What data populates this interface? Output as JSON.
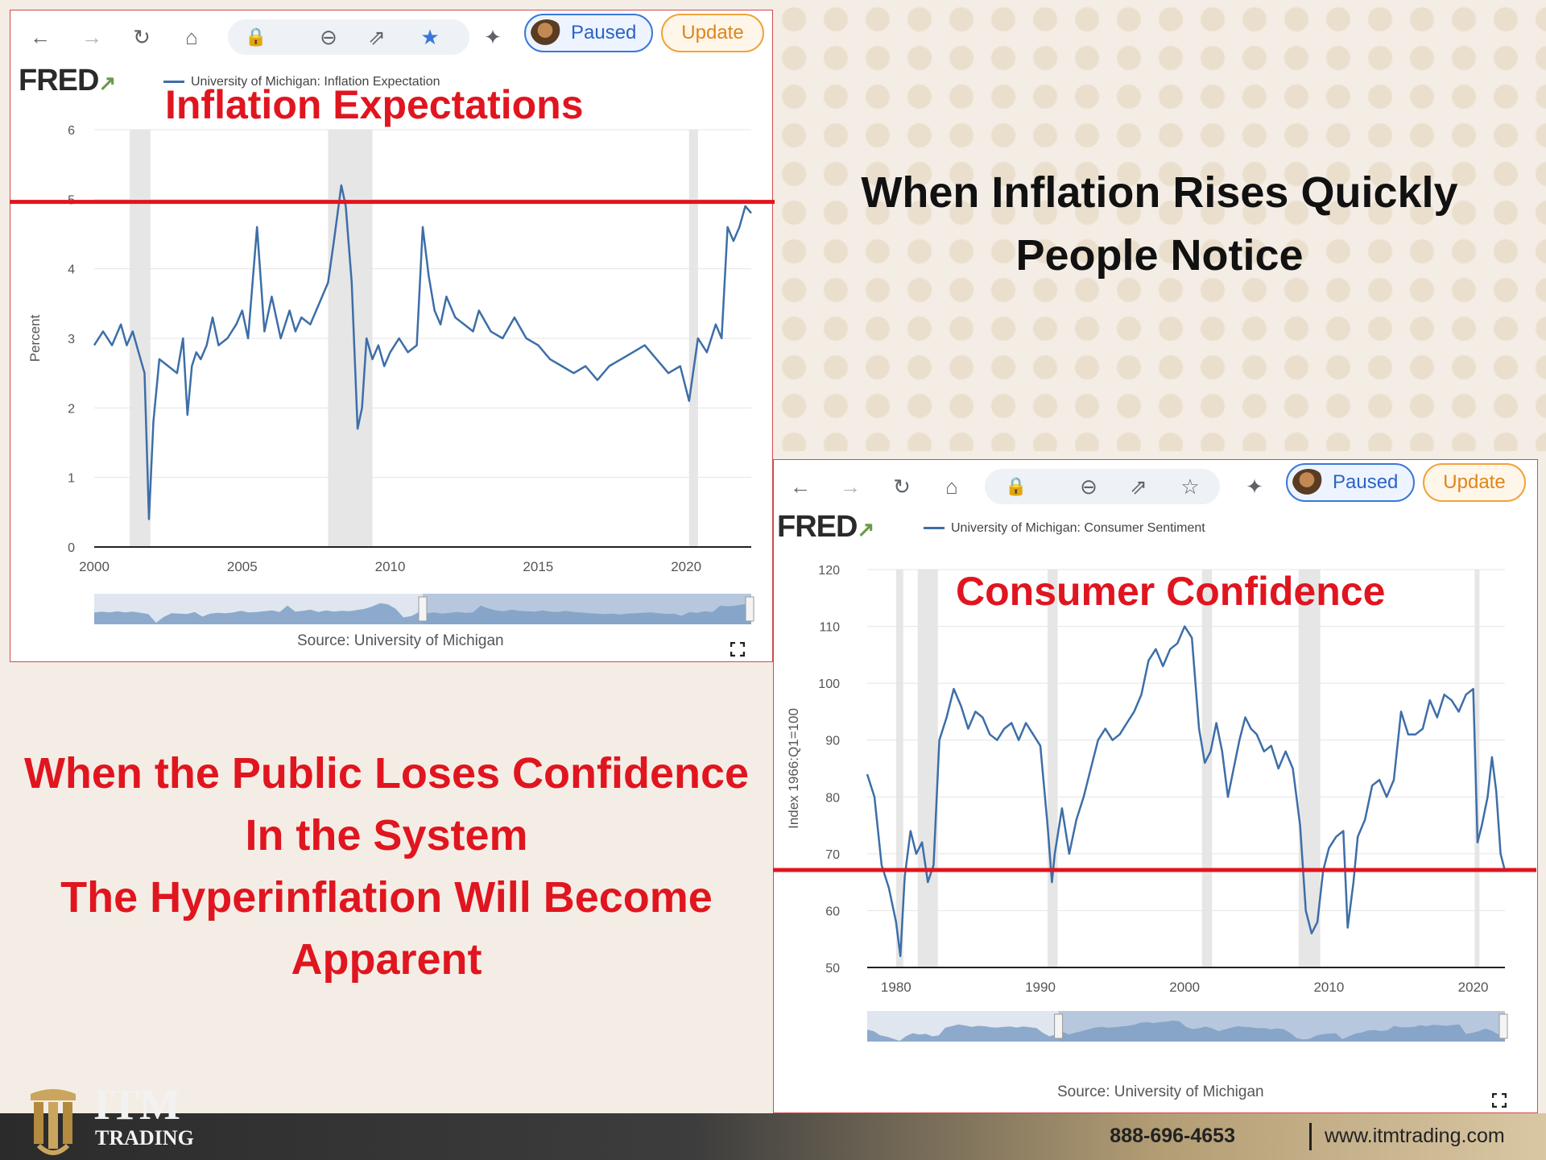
{
  "browser": {
    "paused_label": "Paused",
    "update_label": "Update"
  },
  "chart1": {
    "overlay_title": "Inflation Expectations",
    "legend": "University of Michigan: Inflation Expectation",
    "source": "Source: University of Michigan"
  },
  "chart2": {
    "overlay_title": "Consumer Confidence",
    "legend": "University of Michigan: Consumer Sentiment",
    "source": "Source: University of Michigan"
  },
  "headline_top": {
    "line1": "When Inflation Rises Quickly",
    "line2": "People Notice"
  },
  "headline_left": {
    "line1": "When the Public Loses Confidence",
    "line2": "In the System",
    "line3": "The Hyperinflation Will Become",
    "line4": "Apparent"
  },
  "footer": {
    "logo_line1": "ITM",
    "logo_line2": "TRADING",
    "phone": "888-696-4653",
    "website": "www.itmtrading.com"
  },
  "colors": {
    "series": "#3d6ea8",
    "highlight": "#e0151f",
    "recession": "#e6e6e6"
  },
  "chart_data": [
    {
      "type": "line",
      "title": "",
      "series_name": "University of Michigan: Inflation Expectation",
      "xlabel": "",
      "ylabel": "Percent",
      "xlim": [
        2000,
        2022.2
      ],
      "ylim": [
        0,
        6
      ],
      "x_ticks": [
        2000,
        2005,
        2010,
        2015,
        2020
      ],
      "y_ticks": [
        0,
        1,
        2,
        3,
        4,
        5,
        6
      ],
      "recessions": [
        [
          2001.2,
          2001.9
        ],
        [
          2007.9,
          2009.4
        ],
        [
          2020.1,
          2020.4
        ]
      ],
      "reference_line": 4.95,
      "x": [
        2000.0,
        2000.3,
        2000.6,
        2000.9,
        2001.1,
        2001.3,
        2001.5,
        2001.7,
        2001.85,
        2002.0,
        2002.2,
        2002.5,
        2002.8,
        2003.0,
        2003.15,
        2003.3,
        2003.45,
        2003.6,
        2003.8,
        2004.0,
        2004.2,
        2004.5,
        2004.8,
        2005.0,
        2005.2,
        2005.5,
        2005.75,
        2005.85,
        2006.0,
        2006.3,
        2006.6,
        2006.8,
        2007.0,
        2007.3,
        2007.6,
        2007.9,
        2008.1,
        2008.35,
        2008.5,
        2008.7,
        2008.9,
        2009.05,
        2009.2,
        2009.4,
        2009.6,
        2009.8,
        2010.0,
        2010.3,
        2010.6,
        2010.9,
        2011.1,
        2011.3,
        2011.5,
        2011.7,
        2011.9,
        2012.2,
        2012.5,
        2012.8,
        2013.0,
        2013.4,
        2013.8,
        2014.2,
        2014.6,
        2015.0,
        2015.4,
        2015.8,
        2016.2,
        2016.6,
        2017.0,
        2017.4,
        2017.8,
        2018.2,
        2018.6,
        2019.0,
        2019.4,
        2019.8,
        2020.1,
        2020.4,
        2020.7,
        2021.0,
        2021.2,
        2021.4,
        2021.6,
        2021.8,
        2022.0,
        2022.2
      ],
      "y": [
        2.9,
        3.1,
        2.9,
        3.2,
        2.9,
        3.1,
        2.8,
        2.5,
        0.4,
        1.8,
        2.7,
        2.6,
        2.5,
        3.0,
        1.9,
        2.6,
        2.8,
        2.7,
        2.9,
        3.3,
        2.9,
        3.0,
        3.2,
        3.4,
        3.0,
        4.6,
        3.1,
        3.3,
        3.6,
        3.0,
        3.4,
        3.1,
        3.3,
        3.2,
        3.5,
        3.8,
        4.4,
        5.2,
        4.9,
        3.8,
        1.7,
        2.0,
        3.0,
        2.7,
        2.9,
        2.6,
        2.8,
        3.0,
        2.8,
        2.9,
        4.6,
        3.9,
        3.4,
        3.2,
        3.6,
        3.3,
        3.2,
        3.1,
        3.4,
        3.1,
        3.0,
        3.3,
        3.0,
        2.9,
        2.7,
        2.6,
        2.5,
        2.6,
        2.4,
        2.6,
        2.7,
        2.8,
        2.9,
        2.7,
        2.5,
        2.6,
        2.1,
        3.0,
        2.8,
        3.2,
        3.0,
        4.6,
        4.4,
        4.6,
        4.9,
        4.8
      ]
    },
    {
      "type": "line",
      "title": "",
      "series_name": "University of Michigan: Consumer Sentiment",
      "xlabel": "",
      "ylabel": "Index 1966:Q1=100",
      "xlim": [
        1978,
        2022.2
      ],
      "ylim": [
        50,
        120
      ],
      "x_ticks": [
        1980,
        1990,
        2000,
        2010,
        2020
      ],
      "y_ticks": [
        50,
        60,
        70,
        80,
        90,
        100,
        110,
        120
      ],
      "recessions": [
        [
          1980.0,
          1980.5
        ],
        [
          1981.5,
          1982.9
        ],
        [
          1990.5,
          1991.2
        ],
        [
          2001.2,
          2001.9
        ],
        [
          2007.9,
          2009.4
        ],
        [
          2020.1,
          2020.4
        ]
      ],
      "reference_line": 67,
      "x": [
        1978.0,
        1978.5,
        1979.0,
        1979.5,
        1980.0,
        1980.3,
        1980.6,
        1981.0,
        1981.4,
        1981.8,
        1982.2,
        1982.6,
        1983.0,
        1983.5,
        1984.0,
        1984.5,
        1985.0,
        1985.5,
        1986.0,
        1986.5,
        1987.0,
        1987.5,
        1988.0,
        1988.5,
        1989.0,
        1989.5,
        1990.0,
        1990.5,
        1990.8,
        1991.0,
        1991.5,
        1992.0,
        1992.5,
        1993.0,
        1993.5,
        1994.0,
        1994.5,
        1995.0,
        1995.5,
        1996.0,
        1996.5,
        1997.0,
        1997.5,
        1998.0,
        1998.5,
        1999.0,
        1999.5,
        2000.0,
        2000.5,
        2001.0,
        2001.4,
        2001.8,
        2002.2,
        2002.6,
        2003.0,
        2003.4,
        2003.8,
        2004.2,
        2004.6,
        2005.0,
        2005.5,
        2006.0,
        2006.5,
        2007.0,
        2007.5,
        2008.0,
        2008.4,
        2008.8,
        2009.2,
        2009.6,
        2010.0,
        2010.5,
        2011.0,
        2011.3,
        2011.7,
        2012.0,
        2012.5,
        2013.0,
        2013.5,
        2014.0,
        2014.5,
        2015.0,
        2015.5,
        2016.0,
        2016.5,
        2017.0,
        2017.5,
        2018.0,
        2018.5,
        2019.0,
        2019.5,
        2020.0,
        2020.3,
        2020.6,
        2021.0,
        2021.3,
        2021.6,
        2021.9,
        2022.2
      ],
      "y": [
        84,
        80,
        68,
        64,
        58,
        52,
        66,
        74,
        70,
        72,
        65,
        68,
        90,
        94,
        99,
        96,
        92,
        95,
        94,
        91,
        90,
        92,
        93,
        90,
        93,
        91,
        89,
        75,
        65,
        70,
        78,
        70,
        76,
        80,
        85,
        90,
        92,
        90,
        91,
        93,
        95,
        98,
        104,
        106,
        103,
        106,
        107,
        110,
        108,
        92,
        86,
        88,
        93,
        88,
        80,
        85,
        90,
        94,
        92,
        91,
        88,
        89,
        85,
        88,
        85,
        75,
        60,
        56,
        58,
        67,
        71,
        73,
        74,
        57,
        65,
        73,
        76,
        82,
        83,
        80,
        83,
        95,
        91,
        91,
        92,
        97,
        94,
        98,
        97,
        95,
        98,
        99,
        72,
        75,
        80,
        87,
        81,
        70,
        67
      ]
    }
  ]
}
